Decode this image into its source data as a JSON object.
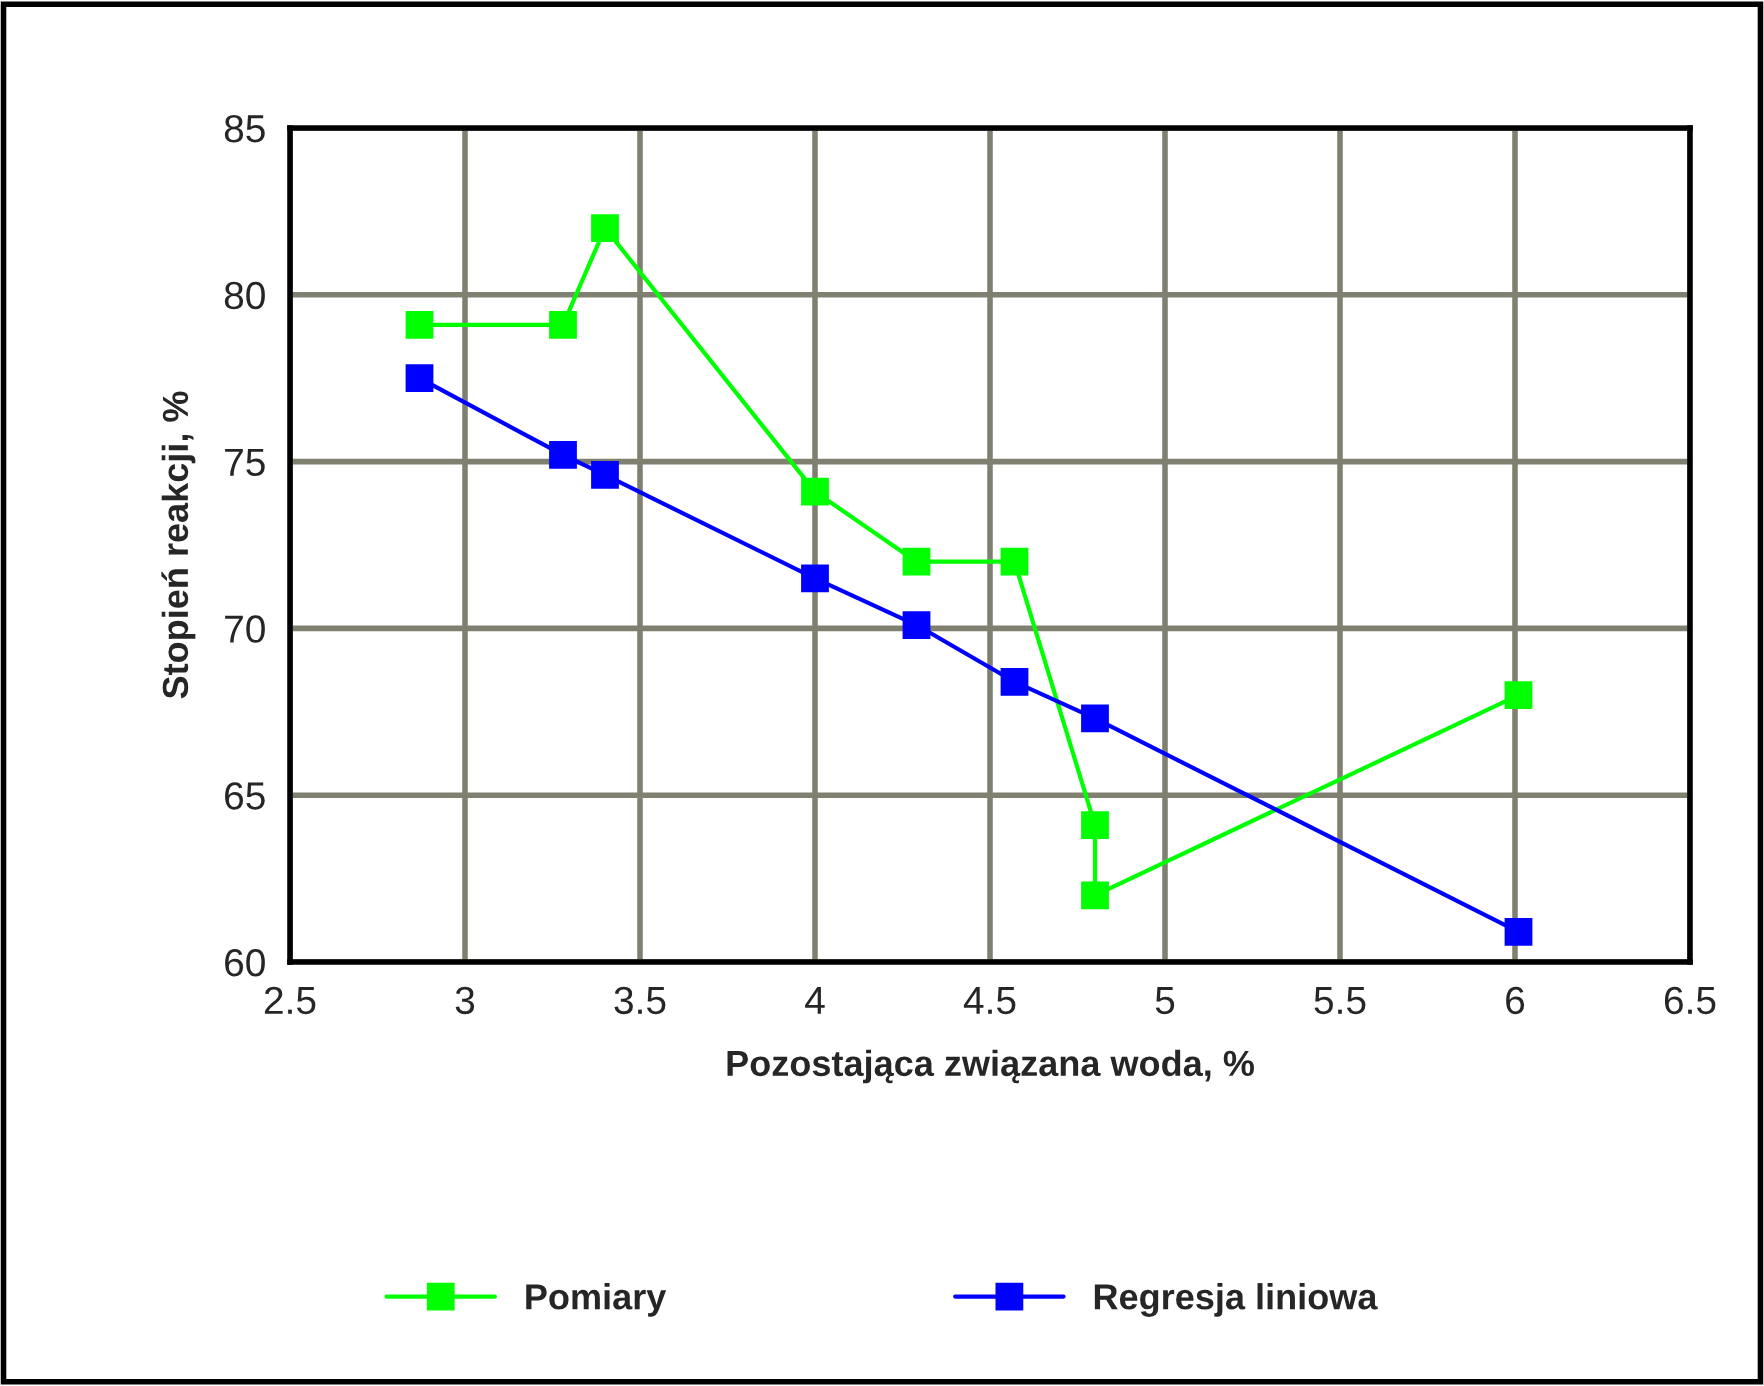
{
  "chart_data": {
    "type": "line",
    "xlabel": "Pozostająca związana woda, %",
    "ylabel": "Stopień reakcji, %",
    "xlim": [
      2.5,
      6.5
    ],
    "xticks": [
      2.5,
      3,
      3.5,
      4,
      4.5,
      5,
      5.5,
      6,
      6.5
    ],
    "ylim": [
      60,
      85
    ],
    "yticks": [
      60,
      65,
      70,
      75,
      80,
      85
    ],
    "grid": true,
    "marker": "square",
    "line_style": "solid",
    "legend": "bottom",
    "series": [
      {
        "name": "Pomiary",
        "color": "#00ff00",
        "x": [
          2.87,
          3.28,
          3.4,
          4.0,
          4.29,
          4.57,
          4.8,
          4.8,
          6.01
        ],
        "values": [
          79.1,
          79.1,
          82.0,
          74.1,
          72.0,
          72.0,
          64.1,
          62.0,
          68.0
        ]
      },
      {
        "name": "Regresja liniowa",
        "color": "#0000ff",
        "x": [
          2.87,
          3.28,
          3.4,
          4.0,
          4.29,
          4.57,
          4.8,
          6.01
        ],
        "values": [
          77.5,
          75.2,
          74.6,
          71.5,
          70.1,
          68.4,
          67.3,
          60.9
        ]
      }
    ]
  }
}
